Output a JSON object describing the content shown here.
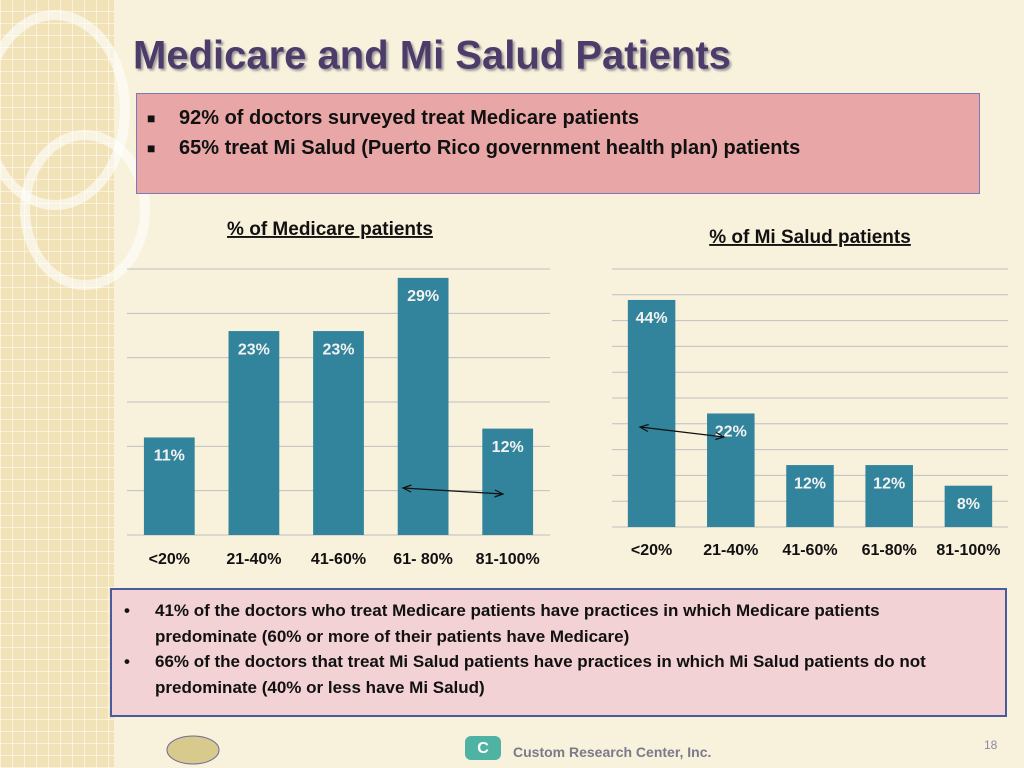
{
  "title": "Medicare and Mi Salud Patients",
  "summary": [
    "92% of doctors surveyed treat Medicare patients",
    "65% treat Mi Salud (Puerto Rico government health plan) patients"
  ],
  "chart_data": [
    {
      "type": "bar",
      "title": "% of  Medicare patients",
      "categories": [
        "<20%",
        "21-40%",
        "41-60%",
        "61- 80%",
        "81-100%"
      ],
      "values": [
        11,
        23,
        23,
        29,
        12
      ],
      "value_labels": [
        "11%",
        "23%",
        "23%",
        "29%",
        "12%"
      ],
      "color": "#31849b",
      "ylim": [
        0,
        30
      ],
      "yticks": [
        0,
        5,
        10,
        15,
        20,
        25,
        30
      ],
      "grid": true
    },
    {
      "type": "bar",
      "title": "% of Mi Salud patients",
      "categories": [
        "<20%",
        "21-40%",
        "41-60%",
        "61-80%",
        "81-100%"
      ],
      "values": [
        44,
        22,
        12,
        12,
        8
      ],
      "value_labels": [
        "44%",
        "22%",
        "12%",
        "12%",
        "8%"
      ],
      "color": "#31849b",
      "ylim": [
        0,
        50
      ],
      "yticks": [
        0,
        5,
        10,
        15,
        20,
        25,
        30,
        35,
        40,
        45,
        50
      ],
      "grid": true
    }
  ],
  "notes": [
    "41% of the doctors who treat Medicare patients have practices in which Medicare patients predominate (60% or more of their patients have Medicare)",
    "66% of the doctors that treat Mi Salud patients have practices in which  Mi Salud patients do not predominate (40% or less have Mi Salud)"
  ],
  "footer": {
    "company": "Custom Research Center, Inc.",
    "page": "18"
  }
}
